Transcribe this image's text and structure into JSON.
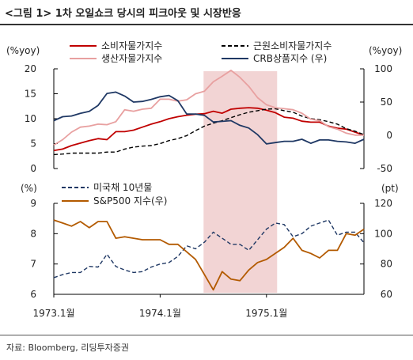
{
  "title": "<그림 1> 1차 오일쇼크 당시의 피크아웃 및 시장반응",
  "source": "자료: Bloomberg,  리딩투자증권",
  "chart_data": [
    {
      "type": "line",
      "left_axis": {
        "unit_label": "(%yoy)",
        "ticks": [
          "20",
          "15",
          "10",
          "5",
          "0"
        ],
        "ylim": [
          0,
          20
        ]
      },
      "right_axis": {
        "unit_label": "(%yoy)",
        "ticks": [
          "100",
          "50",
          "0",
          "-50"
        ],
        "ylim": [
          -50,
          100
        ]
      },
      "x": [
        0,
        1,
        2,
        3,
        4,
        5,
        6,
        7,
        8,
        9,
        10,
        11,
        12,
        13,
        14,
        15,
        16,
        17,
        18,
        19,
        20,
        21,
        22,
        23,
        24,
        25,
        26,
        27,
        28,
        29,
        30,
        31,
        32,
        33,
        34,
        35
      ],
      "series": [
        {
          "name": "소비자물가지수",
          "axis": "left",
          "color": "#c00000",
          "dash": "solid",
          "values": [
            3.6,
            3.9,
            4.6,
            5.1,
            5.6,
            6.0,
            5.8,
            7.4,
            7.4,
            7.7,
            8.3,
            8.9,
            9.4,
            10.0,
            10.4,
            10.7,
            10.9,
            11.0,
            11.5,
            11.1,
            11.9,
            12.1,
            12.2,
            12.1,
            11.7,
            11.2,
            10.3,
            10.1,
            9.5,
            9.3,
            9.3,
            8.5,
            8.1,
            7.9,
            7.3,
            6.7
          ]
        },
        {
          "name": "근원소비자물가지수",
          "axis": "left",
          "color": "#000000",
          "dash": "dashed",
          "values": [
            2.8,
            2.9,
            3.1,
            3.1,
            3.1,
            3.1,
            3.3,
            3.3,
            3.9,
            4.3,
            4.5,
            4.6,
            5.0,
            5.6,
            6.0,
            6.6,
            7.6,
            8.5,
            9.1,
            9.6,
            10.2,
            10.8,
            11.3,
            11.6,
            11.9,
            12.0,
            11.6,
            11.3,
            10.5,
            10.0,
            9.8,
            9.4,
            8.9,
            8.0,
            7.5,
            6.8
          ]
        },
        {
          "name": "생산자물가지수",
          "axis": "left",
          "color": "#e8a0a0",
          "dash": "solid",
          "values": [
            4.7,
            5.8,
            7.3,
            8.3,
            8.5,
            8.9,
            8.8,
            9.4,
            11.8,
            11.5,
            11.9,
            12.1,
            13.9,
            13.9,
            13.5,
            13.8,
            15.0,
            15.5,
            17.4,
            18.5,
            19.7,
            18.3,
            16.5,
            14.2,
            12.8,
            12.2,
            12.0,
            11.8,
            11.1,
            9.9,
            9.6,
            8.4,
            7.9,
            7.1,
            6.7,
            6.7
          ]
        },
        {
          "name": "CRB상품지수 (우)",
          "axis": "right",
          "color": "#1f3864",
          "dash": "solid",
          "values": [
            22,
            28,
            29,
            33,
            36,
            45,
            63,
            65,
            59,
            50,
            51,
            54,
            58,
            60,
            52,
            32,
            32,
            30,
            20,
            21,
            22,
            15,
            11,
            1,
            -13,
            -11,
            -9,
            -9,
            -6,
            -12,
            -7,
            -7,
            -9,
            -10,
            -12,
            -6
          ]
        }
      ]
    },
    {
      "type": "line",
      "left_axis": {
        "unit_label": "(%)",
        "ticks": [
          "9",
          "8",
          "7",
          "6"
        ],
        "ylim": [
          6,
          9
        ]
      },
      "right_axis": {
        "unit_label": "(pt)",
        "ticks": [
          "120",
          "100",
          "80",
          "60"
        ],
        "ylim": [
          60,
          120
        ]
      },
      "x": [
        0,
        1,
        2,
        3,
        4,
        5,
        6,
        7,
        8,
        9,
        10,
        11,
        12,
        13,
        14,
        15,
        16,
        17,
        18,
        19,
        20,
        21,
        22,
        23,
        24,
        25,
        26,
        27,
        28,
        29,
        30,
        31,
        32,
        33,
        34,
        35
      ],
      "x_tick_labels": [
        "1973.1월",
        "1974.1월",
        "1975.1월"
      ],
      "x_tick_positions": [
        0,
        12,
        24
      ],
      "series": [
        {
          "name": "미국채 10년물",
          "axis": "left",
          "color": "#1f3864",
          "dash": "dashed",
          "values": [
            6.55,
            6.65,
            6.72,
            6.72,
            6.92,
            6.9,
            7.32,
            6.92,
            6.8,
            6.72,
            6.75,
            6.9,
            7.0,
            7.05,
            7.25,
            7.6,
            7.5,
            7.72,
            8.05,
            7.85,
            7.65,
            7.65,
            7.45,
            7.8,
            8.15,
            8.35,
            8.3,
            7.9,
            8.0,
            8.25,
            8.35,
            8.45,
            7.95,
            8.05,
            8.05,
            7.7
          ]
        },
        {
          "name": "S&P500 지수(우)",
          "axis": "right",
          "color": "#b35a00",
          "dash": "solid",
          "values": [
            109,
            107,
            105,
            108,
            104,
            108,
            108,
            97,
            98,
            97,
            96,
            96,
            96,
            93,
            93,
            88,
            83,
            73,
            63,
            75,
            70,
            69,
            76,
            81,
            83,
            87,
            91,
            97,
            89,
            87,
            84,
            89,
            89,
            100,
            99,
            103
          ]
        }
      ]
    }
  ]
}
